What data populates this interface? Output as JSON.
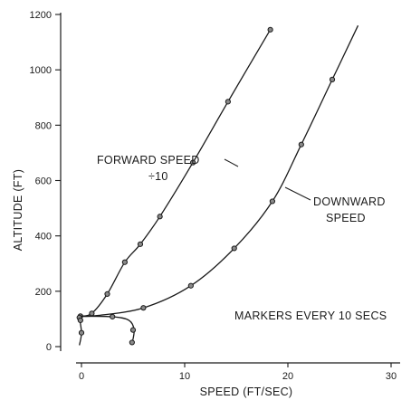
{
  "chart_data": {
    "type": "line",
    "xlabel": "SPEED (FT/SEC)",
    "ylabel": "ALTITUDE (FT)",
    "xlim": [
      0,
      30
    ],
    "ylim": [
      0,
      1200
    ],
    "xticks": [
      0,
      10,
      20,
      30
    ],
    "yticks": [
      0,
      200,
      400,
      600,
      800,
      1000,
      1200
    ],
    "x_tick_labels": [
      "0",
      "10",
      "20",
      "30"
    ],
    "y_tick_labels": [
      "0",
      "200",
      "400",
      "600",
      "800",
      "1000",
      "1200"
    ],
    "grid": false,
    "series": [
      {
        "name": "FORWARD SPEED ÷ 10",
        "curve": [
          [
            -0.1,
            110
          ],
          [
            1,
            120
          ],
          [
            2.5,
            190
          ],
          [
            4.2,
            305
          ],
          [
            5.7,
            370
          ],
          [
            7.6,
            470
          ],
          [
            10.8,
            665
          ],
          [
            14.2,
            885
          ],
          [
            18.3,
            1145
          ]
        ],
        "markers": [
          [
            -0.1,
            110
          ],
          [
            1,
            120
          ],
          [
            2.5,
            190
          ],
          [
            4.2,
            305
          ],
          [
            5.7,
            370
          ],
          [
            7.6,
            470
          ],
          [
            10.8,
            665
          ],
          [
            14.2,
            885
          ],
          [
            18.3,
            1145
          ]
        ]
      },
      {
        "name": "DOWNWARD SPEED",
        "curve": [
          [
            -0.1,
            110
          ],
          [
            1.5,
            112
          ],
          [
            6,
            140
          ],
          [
            10.6,
            220
          ],
          [
            14.8,
            355
          ],
          [
            18.5,
            525
          ],
          [
            21.3,
            730
          ],
          [
            24.3,
            965
          ],
          [
            26.8,
            1160
          ]
        ],
        "markers": [
          [
            6,
            140
          ],
          [
            10.6,
            220
          ],
          [
            14.8,
            355
          ],
          [
            18.5,
            525
          ],
          [
            21.3,
            730
          ],
          [
            24.3,
            965
          ]
        ]
      },
      {
        "name": "",
        "curve": [
          [
            -0.2,
            105
          ],
          [
            0,
            50
          ],
          [
            -0.2,
            5
          ]
        ],
        "markers": [
          [
            -0.2,
            105
          ],
          [
            -0.1,
            95
          ],
          [
            0,
            50
          ]
        ]
      },
      {
        "name": "",
        "curve": [
          [
            -0.1,
            110
          ],
          [
            3,
            108
          ],
          [
            4.6,
            95
          ],
          [
            5.1,
            60
          ],
          [
            4.9,
            10
          ]
        ],
        "markers": [
          [
            3,
            108
          ],
          [
            5,
            60
          ],
          [
            4.9,
            15
          ]
        ]
      }
    ],
    "annotations": {
      "forward": [
        "FORWARD SPEED",
        "÷10"
      ],
      "downward": [
        "DOWNWARD",
        "SPEED"
      ],
      "markers_note": "MARKERS EVERY 10 SECS"
    }
  },
  "labels": {
    "y_axis_title": "ALTITUDE (FT)",
    "x_axis_title": "SPEED (FT/SEC)"
  }
}
